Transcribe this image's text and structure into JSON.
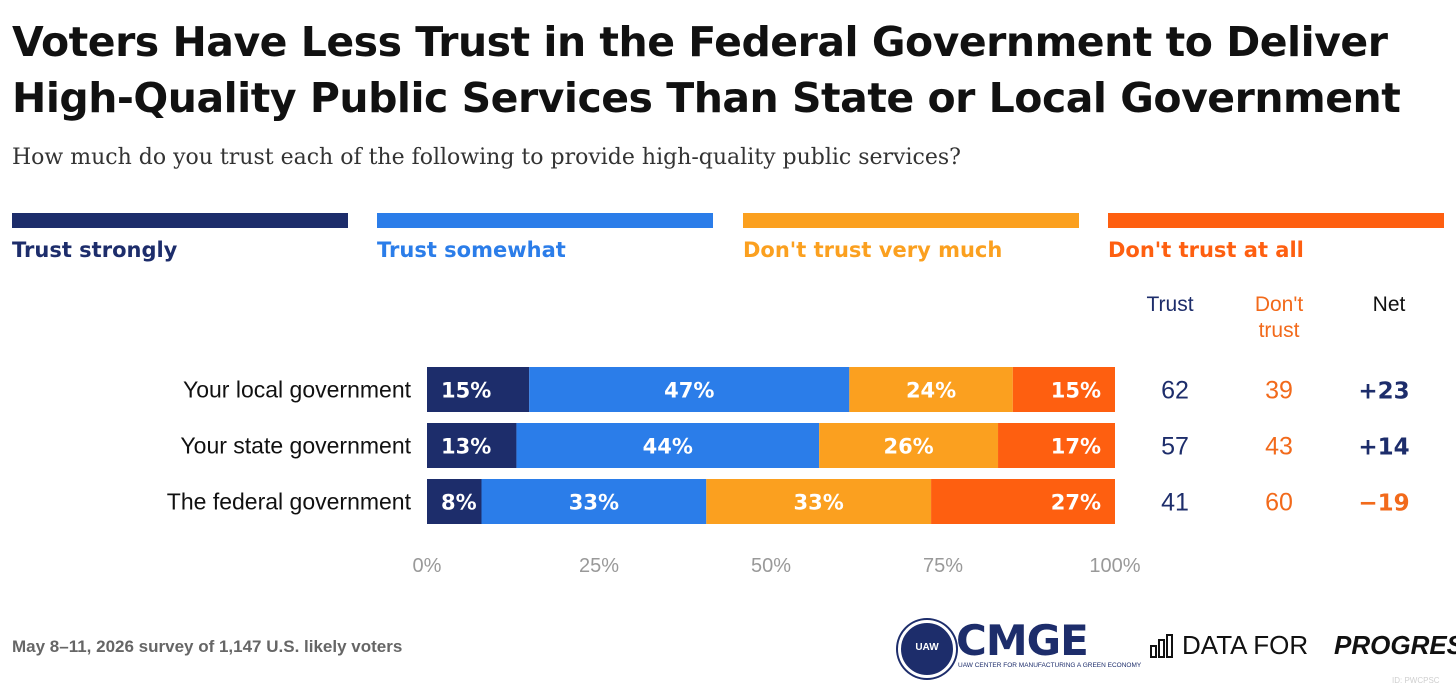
{
  "title": "Voters Have Less Trust in the Federal Government to Deliver High-Quality Public Services Than State or Local Government",
  "subtitle": "How much do you trust each of the following to provide high-quality public services?",
  "colors": {
    "trust_strongly": "#1d2d6b",
    "trust_somewhat": "#2b7de9",
    "dont_trust_very_much": "#fba01f",
    "dont_trust_at_all": "#fe5f10",
    "navy_text": "#1d2d6b",
    "orange_text": "#f26a1b"
  },
  "columns": {
    "trust": "Trust",
    "dont_trust": "Don't trust",
    "net": "Net"
  },
  "chart_data": {
    "type": "bar",
    "orientation": "horizontal",
    "stacked": true,
    "categories": [
      "Your local government",
      "Your state government",
      "The federal government"
    ],
    "series": [
      {
        "name": "Trust strongly",
        "values": [
          15,
          13,
          8
        ],
        "labels": [
          "15%",
          "13%",
          "8%"
        ]
      },
      {
        "name": "Trust somewhat",
        "values": [
          47,
          44,
          33
        ],
        "labels": [
          "47%",
          "44%",
          "33%"
        ]
      },
      {
        "name": "Don't trust very much",
        "values": [
          24,
          26,
          33
        ],
        "labels": [
          "24%",
          "26%",
          "33%"
        ]
      },
      {
        "name": "Don't trust at all",
        "values": [
          15,
          17,
          27
        ],
        "labels": [
          "15%",
          "17%",
          "27%"
        ]
      }
    ],
    "xlim": [
      0,
      100
    ],
    "xticks": [
      "0%",
      "25%",
      "50%",
      "75%",
      "100%"
    ],
    "table": {
      "trust": [
        "62",
        "57",
        "41"
      ],
      "dont_trust": [
        "39",
        "43",
        "60"
      ],
      "net": [
        "+23",
        "+14",
        "−19"
      ]
    },
    "legend_position": "top"
  },
  "footnote": "May 8–11, 2026 survey of 1,147 U.S. likely voters",
  "logos": {
    "cmge_seal": "UAW",
    "cmge": "CMGE",
    "cmge_sub": "UAW CENTER FOR MANUFACTURING A GREEN ECONOMY",
    "dfp_a": "DATA FOR",
    "dfp_b": "PROGRESS",
    "dfp_icon": "bar-chart-icon"
  },
  "chart_id": "ID: PWCPSC"
}
